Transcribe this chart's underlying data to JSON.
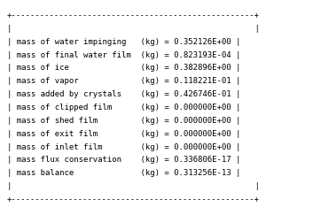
{
  "rows": [
    "| mass of water impinging   (kg) = 0.352126E+00 |",
    "| mass of final water film  (kg) = 0.823193E-04 |",
    "| mass of ice               (kg) = 0.382896E+00 |",
    "| mass of vapor             (kg) = 0.118221E-01 |",
    "| mass added by crystals    (kg) = 0.426746E-01 |",
    "| mass of clipped film      (kg) = 0.000000E+00 |",
    "| mass of shed film         (kg) = 0.000000E+00 |",
    "| mass of exit film         (kg) = 0.000000E+00 |",
    "| mass of inlet film        (kg) = 0.000000E+00 |",
    "| mass flux conservation    (kg) = 0.336806E-17 |",
    "| mass balance              (kg) = 0.313256E-13 |"
  ],
  "col1": [
    "mass of water impinging ",
    "mass of final water film",
    "mass of ice             ",
    "mass of vapor           ",
    "mass added by crystals  ",
    "mass of clipped film    ",
    "mass of shed film       ",
    "mass of exit film       ",
    "mass of inlet film      ",
    "mass flux conservation  ",
    "mass balance            "
  ],
  "col2": [
    "(kg) = 0.352126E+00",
    "(kg) = 0.823193E-04",
    "(kg) = 0.382896E+00",
    "(kg) = 0.118221E-01",
    "(kg) = 0.426746E-01",
    "(kg) = 0.000000E+00",
    "(kg) = 0.000000E+00",
    "(kg) = 0.000000E+00",
    "(kg) = 0.000000E+00",
    "(kg) = 0.336806E-17",
    "(kg) = 0.313256E-13"
  ],
  "bg_color": "#ffffff",
  "text_color": "#000000",
  "border_color": "#000000",
  "font_size": 6.5
}
